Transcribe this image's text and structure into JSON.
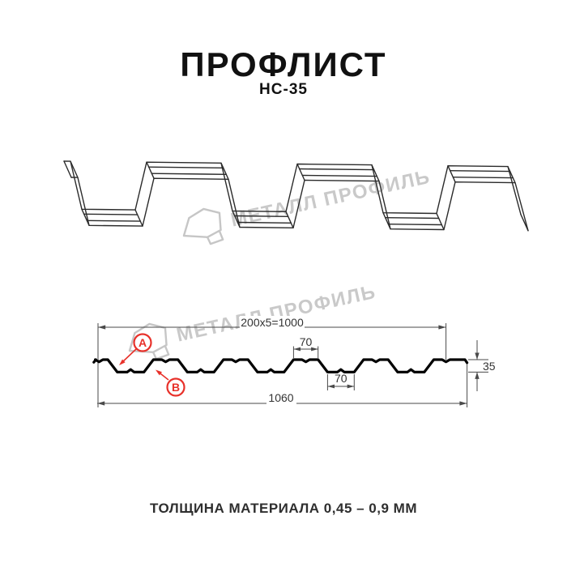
{
  "header": {
    "title": "ПРОФЛИСТ",
    "subtitle": "НС-35"
  },
  "watermark": {
    "text": "МЕТАЛЛ ПРОФИЛЬ",
    "color": "#c9c9c9"
  },
  "cross_section": {
    "dim_cover": "200x5=1000",
    "dim_top_flange": "70",
    "dim_bottom_flange": "70",
    "dim_height": "35",
    "dim_total_width": "1060",
    "label_a": "А",
    "label_b": "В",
    "accent_red": "#e8312a"
  },
  "footer": {
    "thickness_note": "ТОЛЩИНА МАТЕРИАЛА 0,45 – 0,9 ММ"
  }
}
